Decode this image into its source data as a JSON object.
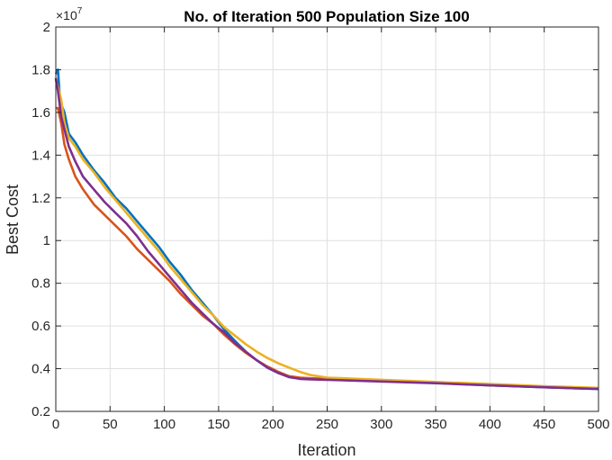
{
  "chart_data": {
    "type": "line",
    "title": "No. of Iteration 500 Population Size 100",
    "xlabel": "Iteration",
    "ylabel": "Best Cost",
    "y_exponent_base": "×10",
    "y_exponent_power": "7",
    "xlim": [
      0,
      500
    ],
    "ylim": [
      0.2,
      2
    ],
    "xticks": [
      0,
      50,
      100,
      150,
      200,
      250,
      300,
      350,
      400,
      450,
      500
    ],
    "yticks": [
      0.2,
      0.4,
      0.6,
      0.8,
      1,
      1.2,
      1.4,
      1.6,
      1.8,
      2
    ],
    "grid": true,
    "series": [
      {
        "color": "#0072BD",
        "x": [
          0,
          2,
          4,
          8,
          12,
          18,
          25,
          35,
          45,
          55,
          65,
          75,
          85,
          95,
          105,
          115,
          125,
          135,
          145,
          155,
          165,
          175,
          185,
          195,
          205,
          215,
          225,
          235,
          250,
          300,
          350,
          400,
          450,
          500
        ],
        "y": [
          1.78,
          1.8,
          1.65,
          1.6,
          1.5,
          1.46,
          1.4,
          1.33,
          1.27,
          1.2,
          1.15,
          1.09,
          1.03,
          0.97,
          0.9,
          0.84,
          0.77,
          0.71,
          0.65,
          0.585,
          0.53,
          0.48,
          0.44,
          0.405,
          0.38,
          0.362,
          0.355,
          0.352,
          0.35,
          0.342,
          0.333,
          0.322,
          0.313,
          0.305
        ]
      },
      {
        "color": "#D95319",
        "x": [
          0,
          2,
          5,
          8,
          12,
          18,
          25,
          35,
          45,
          55,
          65,
          75,
          85,
          95,
          105,
          115,
          125,
          135,
          145,
          155,
          165,
          175,
          185,
          195,
          205,
          215,
          225,
          235,
          250,
          300,
          350,
          400,
          450,
          500
        ],
        "y": [
          1.62,
          1.62,
          1.55,
          1.45,
          1.38,
          1.3,
          1.24,
          1.17,
          1.12,
          1.07,
          1.02,
          0.96,
          0.91,
          0.86,
          0.81,
          0.75,
          0.7,
          0.65,
          0.61,
          0.56,
          0.515,
          0.475,
          0.44,
          0.41,
          0.385,
          0.365,
          0.358,
          0.355,
          0.352,
          0.343,
          0.335,
          0.325,
          0.315,
          0.307
        ]
      },
      {
        "color": "#EDB120",
        "x": [
          0,
          2,
          5,
          8,
          12,
          18,
          25,
          35,
          45,
          55,
          65,
          75,
          85,
          95,
          105,
          115,
          125,
          135,
          145,
          155,
          165,
          175,
          185,
          195,
          205,
          215,
          225,
          235,
          250,
          300,
          350,
          400,
          450,
          500
        ],
        "y": [
          1.75,
          1.72,
          1.66,
          1.55,
          1.48,
          1.44,
          1.38,
          1.32,
          1.25,
          1.19,
          1.13,
          1.07,
          1.01,
          0.95,
          0.88,
          0.82,
          0.76,
          0.7,
          0.65,
          0.595,
          0.555,
          0.515,
          0.48,
          0.45,
          0.425,
          0.405,
          0.385,
          0.37,
          0.358,
          0.348,
          0.338,
          0.328,
          0.318,
          0.31
        ]
      },
      {
        "color": "#7E2F8E",
        "x": [
          0,
          2,
          5,
          8,
          12,
          18,
          25,
          35,
          45,
          55,
          65,
          75,
          85,
          95,
          105,
          115,
          125,
          135,
          145,
          155,
          165,
          175,
          185,
          195,
          205,
          215,
          225,
          235,
          250,
          300,
          350,
          400,
          450,
          500
        ],
        "y": [
          1.76,
          1.7,
          1.58,
          1.52,
          1.44,
          1.37,
          1.3,
          1.24,
          1.18,
          1.13,
          1.08,
          1.02,
          0.95,
          0.89,
          0.83,
          0.77,
          0.71,
          0.66,
          0.61,
          0.57,
          0.52,
          0.48,
          0.44,
          0.405,
          0.38,
          0.36,
          0.352,
          0.35,
          0.348,
          0.34,
          0.332,
          0.322,
          0.313,
          0.305
        ]
      }
    ]
  }
}
